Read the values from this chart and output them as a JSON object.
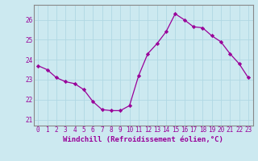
{
  "x": [
    0,
    1,
    2,
    3,
    4,
    5,
    6,
    7,
    8,
    9,
    10,
    11,
    12,
    13,
    14,
    15,
    16,
    17,
    18,
    19,
    20,
    21,
    22,
    23
  ],
  "y": [
    23.7,
    23.5,
    23.1,
    22.9,
    22.8,
    22.5,
    21.9,
    21.5,
    21.45,
    21.45,
    21.7,
    23.2,
    24.3,
    24.8,
    25.4,
    26.3,
    26.0,
    25.65,
    25.6,
    25.2,
    24.9,
    24.3,
    23.8,
    23.1
  ],
  "line_color": "#990099",
  "marker": "D",
  "marker_size": 2.2,
  "bg_color": "#cce9f0",
  "grid_color": "#b0d8e3",
  "xlabel": "Windchill (Refroidissement éolien,°C)",
  "xlabel_fontsize": 6.5,
  "tick_label_color": "#990099",
  "tick_label_fontsize": 5.5,
  "yticks": [
    21,
    22,
    23,
    24,
    25,
    26
  ],
  "xticks": [
    0,
    1,
    2,
    3,
    4,
    5,
    6,
    7,
    8,
    9,
    10,
    11,
    12,
    13,
    14,
    15,
    16,
    17,
    18,
    19,
    20,
    21,
    22,
    23
  ],
  "ylim": [
    20.7,
    26.75
  ],
  "xlim": [
    -0.5,
    23.5
  ]
}
